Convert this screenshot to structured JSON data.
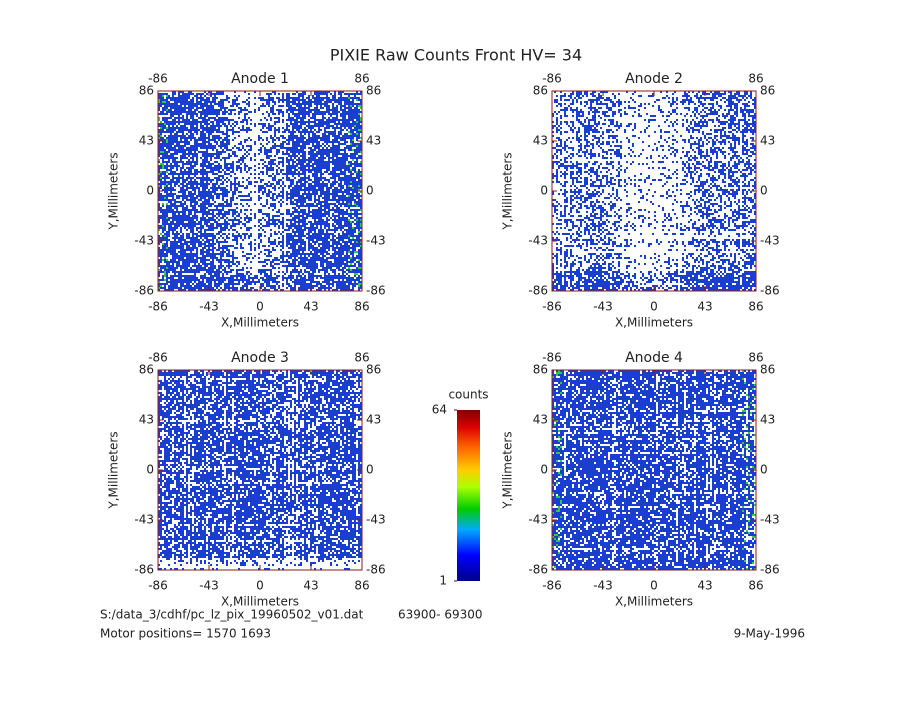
{
  "title": "PIXIE Raw Counts Front HV= 34",
  "chart_data": [
    {
      "type": "heatmap",
      "title": "Anode 1",
      "xlabel": "X,Millimeters",
      "ylabel": "Y,Millimeters",
      "xlim": [
        -86,
        86
      ],
      "ylim": [
        -86,
        86
      ],
      "xticks": [
        -86,
        -43,
        0,
        43,
        86
      ],
      "yticks": [
        -86,
        -43,
        0,
        43,
        86
      ]
    },
    {
      "type": "heatmap",
      "title": "Anode 2",
      "xlabel": "X,Millimeters",
      "ylabel": "Y,Millimeters",
      "xlim": [
        -86,
        86
      ],
      "ylim": [
        -86,
        86
      ],
      "xticks": [
        -86,
        -43,
        0,
        43,
        86
      ],
      "yticks": [
        -86,
        -43,
        0,
        43,
        86
      ]
    },
    {
      "type": "heatmap",
      "title": "Anode 3",
      "xlabel": "X,Millimeters",
      "ylabel": "Y,Millimeters",
      "xlim": [
        -86,
        86
      ],
      "ylim": [
        -86,
        86
      ],
      "xticks": [
        -86,
        -43,
        0,
        43,
        86
      ],
      "yticks": [
        -86,
        -43,
        0,
        43,
        86
      ]
    },
    {
      "type": "heatmap",
      "title": "Anode 4",
      "xlabel": "X,Millimeters",
      "ylabel": "Y,Millimeters",
      "xlim": [
        -86,
        86
      ],
      "ylim": [
        -86,
        86
      ],
      "xticks": [
        -86,
        -43,
        0,
        43,
        86
      ],
      "yticks": [
        -86,
        -43,
        0,
        43,
        86
      ]
    },
    {
      "type": "colorbar",
      "title": "counts",
      "ylim": [
        1,
        64
      ],
      "yticks": [
        1,
        64
      ]
    }
  ],
  "footer": {
    "file": "S:/data_3/cdhf/pc_lz_pix_19960502_v01.dat",
    "range": "63900- 69300",
    "motor": "Motor positions= 1570 1693",
    "date": "9-May-1996"
  }
}
